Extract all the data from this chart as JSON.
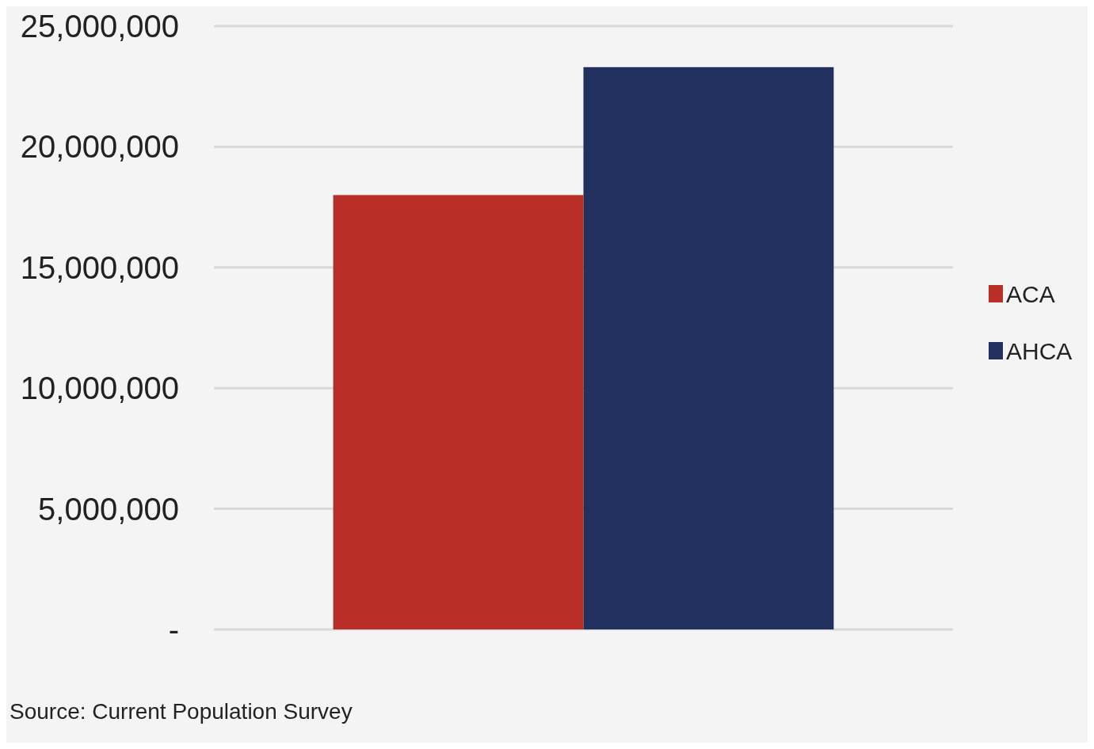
{
  "chart_data": {
    "type": "bar",
    "categories": [
      null
    ],
    "series": [
      {
        "name": "ACA",
        "color": "#b92e27",
        "values": [
          18000000
        ]
      },
      {
        "name": "AHCA",
        "color": "#21305f",
        "values": [
          23300000
        ]
      }
    ],
    "ylim": [
      0,
      25000000
    ],
    "yticks": [
      {
        "value": 0,
        "label": "-"
      },
      {
        "value": 5000000,
        "label": "5,000,000"
      },
      {
        "value": 10000000,
        "label": "10,000,000"
      },
      {
        "value": 15000000,
        "label": "15,000,000"
      },
      {
        "value": 20000000,
        "label": "20,000,000"
      },
      {
        "value": 25000000,
        "label": "25,000,000"
      }
    ],
    "grid": "y",
    "legend": "right",
    "annotations": [
      "Source: Current Population Survey"
    ]
  }
}
